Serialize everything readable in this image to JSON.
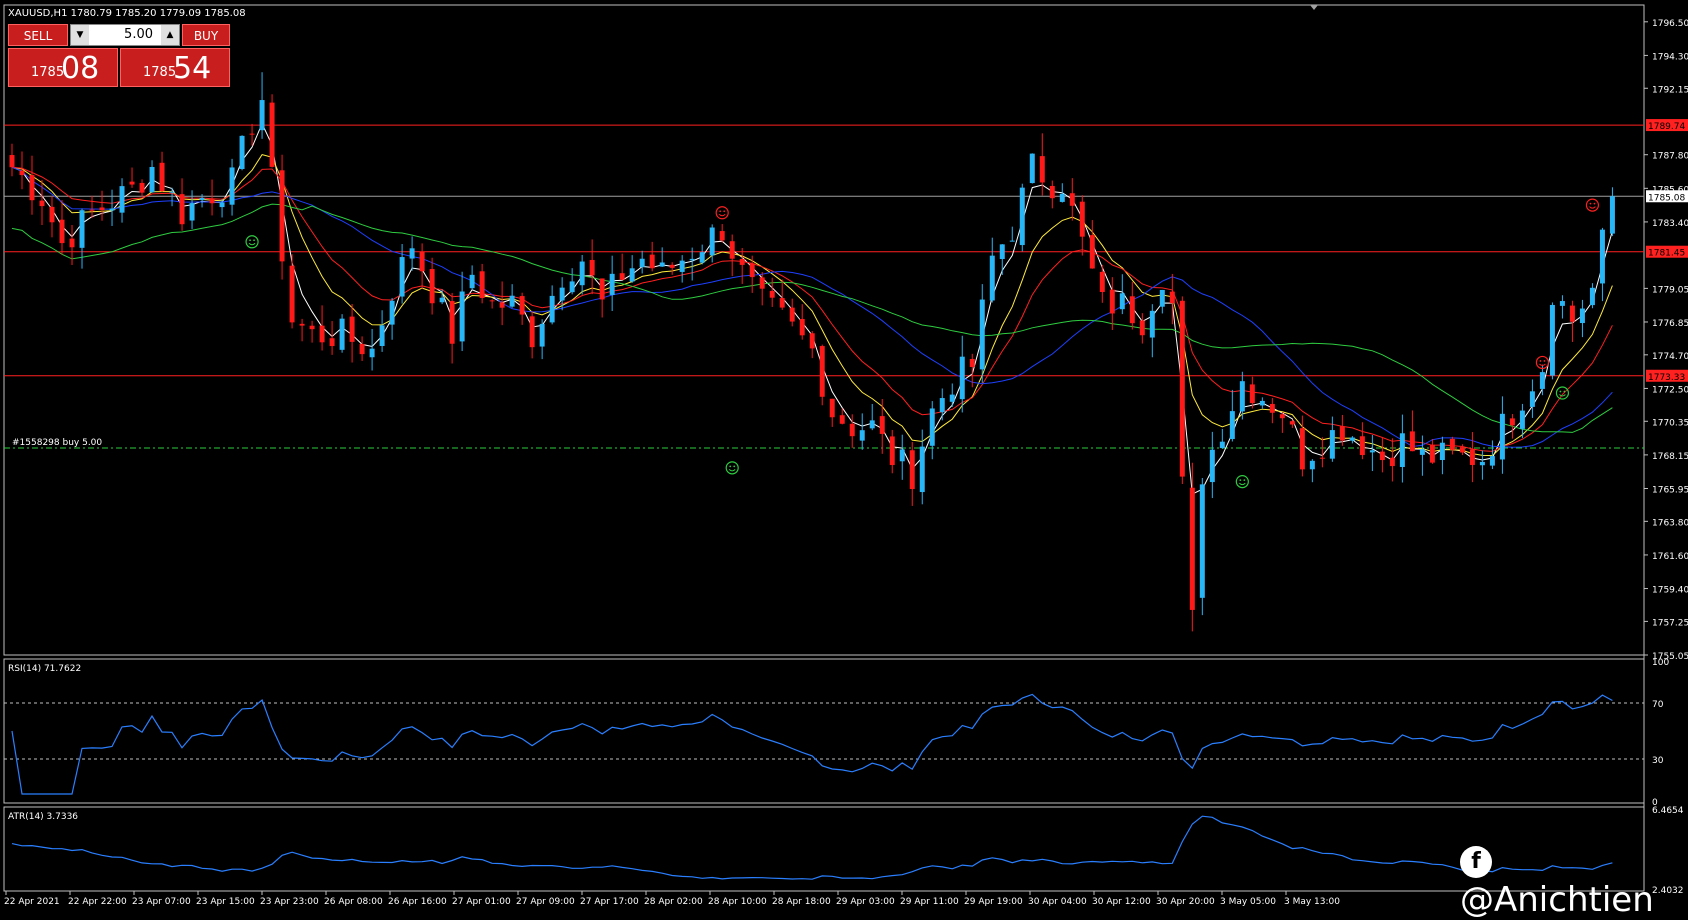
{
  "header": {
    "symbol": "XAUUSD,H1",
    "ohlc": "1780.79 1785.20 1779.09 1785.08"
  },
  "trade_panel": {
    "sell_label": "SELL",
    "buy_label": "BUY",
    "lot": "5.00",
    "sell_price_small": "1785",
    "sell_price_big": "08",
    "buy_price_small": "1785",
    "buy_price_big": "54"
  },
  "order_line_label": "#1558298 buy 5.00",
  "watermark": "@Anichtien",
  "colors": {
    "bull": "#29b6f6",
    "bear": "#ff1a1a",
    "ema_white": "#ffffff",
    "ema_yellow": "#ffeb3b",
    "ema_red": "#ff2020",
    "ma_blue": "#1e40ff",
    "ma_green": "#2ecc40",
    "level_red": "#ff2020",
    "bid_line": "#a0a0a0",
    "order_line": "#2ecc40",
    "indicator": "#2a7fff"
  },
  "chart_data": [
    {
      "type": "candlestick",
      "title": "XAUUSD,H1",
      "y_ticks": [
        "1796.50",
        "1794.30",
        "1792.15",
        "1789.74",
        "1787.80",
        "1785.60",
        "1785.08",
        "1783.40",
        "1781.45",
        "1779.05",
        "1776.85",
        "1774.70",
        "1773.33",
        "1772.50",
        "1770.35",
        "1768.15",
        "1765.95",
        "1763.80",
        "1761.60",
        "1759.40",
        "1757.25",
        "1755.05"
      ],
      "ylim": [
        1755.05,
        1797.6
      ],
      "x_labels": [
        "22 Apr 2021",
        "22 Apr 22:00",
        "23 Apr 07:00",
        "23 Apr 15:00",
        "23 Apr 23:00",
        "26 Apr 08:00",
        "26 Apr 16:00",
        "27 Apr 01:00",
        "27 Apr 09:00",
        "27 Apr 17:00",
        "28 Apr 02:00",
        "28 Apr 10:00",
        "28 Apr 18:00",
        "29 Apr 03:00",
        "29 Apr 11:00",
        "29 Apr 19:00",
        "30 Apr 04:00",
        "30 Apr 12:00",
        "30 Apr 20:00",
        "3 May 05:00",
        "3 May 13:00"
      ],
      "levels": [
        {
          "label": "1789.74",
          "price": 1789.74
        },
        {
          "label": "1781.45",
          "price": 1781.45
        },
        {
          "label": "1773.33",
          "price": 1773.33
        }
      ],
      "bid": {
        "label": "1785.08",
        "price": 1785.08
      },
      "order_price": 1768.6,
      "keypoints": [
        [
          0,
          1787
        ],
        [
          3,
          1785
        ],
        [
          5,
          1782
        ],
        [
          8,
          1784
        ],
        [
          12,
          1785.5
        ],
        [
          14,
          1787
        ],
        [
          17,
          1784
        ],
        [
          19,
          1785
        ],
        [
          22,
          1786
        ],
        [
          24,
          1790
        ],
        [
          25,
          1791.5
        ],
        [
          26,
          1786
        ],
        [
          28,
          1777
        ],
        [
          30,
          1776
        ],
        [
          33,
          1776
        ],
        [
          36,
          1775
        ],
        [
          38,
          1779
        ],
        [
          40,
          1782
        ],
        [
          42,
          1779
        ],
        [
          44,
          1776
        ],
        [
          46,
          1780
        ],
        [
          48,
          1778
        ],
        [
          50,
          1778
        ],
        [
          52,
          1776
        ],
        [
          55,
          1780
        ],
        [
          57,
          1781
        ],
        [
          59,
          1778
        ],
        [
          61,
          1780
        ],
        [
          63,
          1781
        ],
        [
          65,
          1780
        ],
        [
          67,
          1781
        ],
        [
          69,
          1782
        ],
        [
          71,
          1783
        ],
        [
          73,
          1780
        ],
        [
          75,
          1778
        ],
        [
          77,
          1777
        ],
        [
          80,
          1775
        ],
        [
          82,
          1771
        ],
        [
          84,
          1770
        ],
        [
          86,
          1770
        ],
        [
          88,
          1768
        ],
        [
          90,
          1767
        ],
        [
          92,
          1771
        ],
        [
          94,
          1773
        ],
        [
          96,
          1774
        ],
        [
          98,
          1781
        ],
        [
          100,
          1783
        ],
        [
          102,
          1787
        ],
        [
          104,
          1786
        ],
        [
          105,
          1786
        ],
        [
          107,
          1782
        ],
        [
          109,
          1778
        ],
        [
          111,
          1778
        ],
        [
          113,
          1777
        ],
        [
          115,
          1780
        ],
        [
          116,
          1778
        ],
        [
          117,
          1766
        ],
        [
          118,
          1758
        ],
        [
          119,
          1767
        ],
        [
          121,
          1770
        ],
        [
          123,
          1773
        ],
        [
          125,
          1772
        ],
        [
          127,
          1771
        ],
        [
          129,
          1768
        ],
        [
          131,
          1769
        ],
        [
          133,
          1770
        ],
        [
          135,
          1769
        ],
        [
          137,
          1768
        ],
        [
          139,
          1769
        ],
        [
          141,
          1768
        ],
        [
          143,
          1768
        ],
        [
          145,
          1768
        ],
        [
          147,
          1768
        ],
        [
          149,
          1770
        ],
        [
          151,
          1772
        ],
        [
          153,
          1774
        ],
        [
          154,
          1779
        ],
        [
          156,
          1777
        ],
        [
          158,
          1779
        ],
        [
          159,
          1782
        ],
        [
          160,
          1785
        ]
      ]
    },
    {
      "type": "line",
      "title": "RSI(14) 71.7622",
      "ylim": [
        0,
        100
      ],
      "y_ticks": [
        "100",
        "70",
        "30",
        "0"
      ],
      "levels": [
        70,
        30
      ]
    },
    {
      "type": "line",
      "title": "ATR(14) 3.7336",
      "ylim": [
        2.4032,
        6.4654
      ],
      "y_ticks": [
        "6.4654",
        "2.4032"
      ]
    }
  ]
}
